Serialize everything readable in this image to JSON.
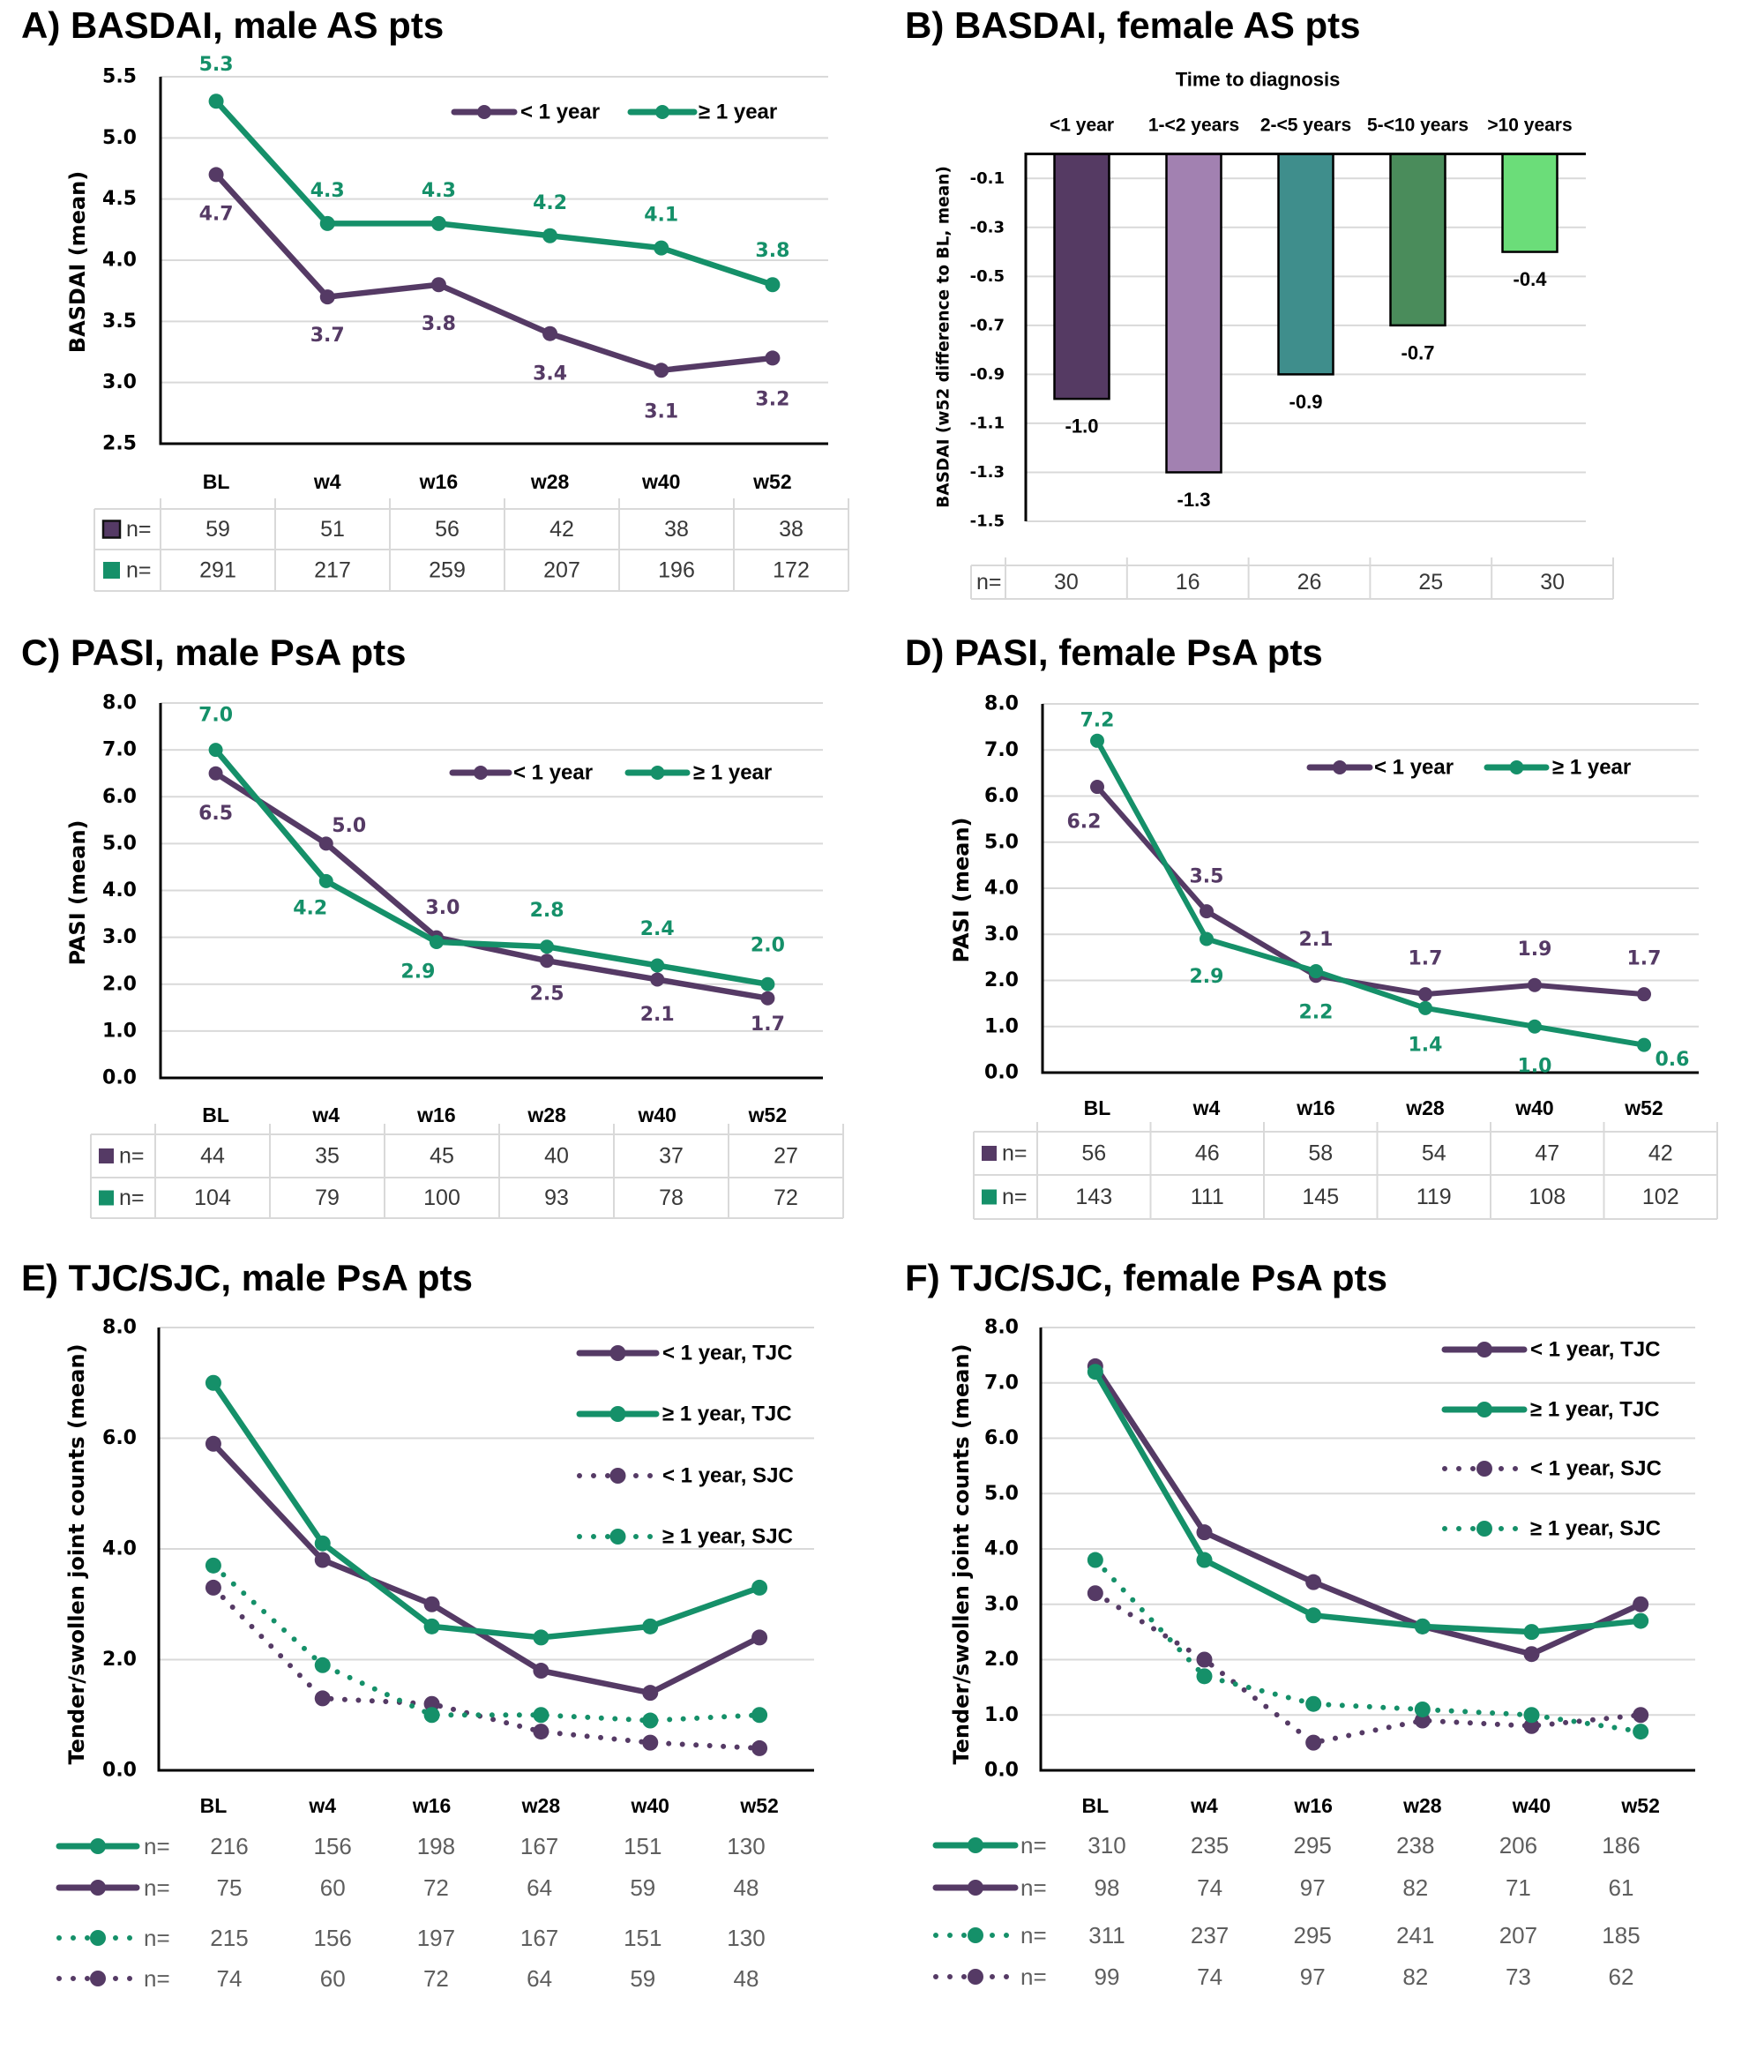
{
  "colors": {
    "less_than_1_year": "#553a65",
    "at_least_1_year": "#159069",
    "gridline": "#d9d9d9",
    "axis": "#000000",
    "table_border": "#d9d9d9"
  },
  "chart_data": [
    {
      "panel": "A",
      "title": "A) BASDAI, male AS pts",
      "type": "line",
      "xlabel": "",
      "ylabel": "BASDAI (mean)",
      "categories": [
        "BL",
        "w4",
        "w16",
        "w28",
        "w40",
        "w52"
      ],
      "ylim": [
        2.5,
        5.5
      ],
      "yticks": [
        2.5,
        3.0,
        3.5,
        4.0,
        4.5,
        5.0,
        5.5
      ],
      "ytick_labels": [
        "2.5",
        "3.0",
        "3.5",
        "4.0",
        "4.5",
        "5.0",
        "5.5"
      ],
      "grid": true,
      "legend": {
        "position": "top-right",
        "orientation": "horizontal"
      },
      "series": [
        {
          "name": "< 1 year",
          "color": "#553a65",
          "line_style": "solid",
          "values": [
            4.7,
            3.7,
            3.8,
            3.4,
            3.1,
            3.2
          ],
          "data_labels": [
            "4.7",
            "3.7",
            "3.8",
            "3.4",
            "3.1",
            "3.2"
          ]
        },
        {
          "name": "≥ 1 year",
          "color": "#159069",
          "line_style": "solid",
          "values": [
            5.3,
            4.3,
            4.3,
            4.2,
            4.1,
            3.8
          ],
          "data_labels": [
            "5.3",
            "4.3",
            "4.3",
            "4.2",
            "4.1",
            "3.8"
          ]
        }
      ],
      "n_table": {
        "rows": [
          {
            "series": 0,
            "label": "n=",
            "values": [
              59,
              51,
              56,
              42,
              38,
              38
            ]
          },
          {
            "series": 1,
            "label": "n=",
            "values": [
              291,
              217,
              259,
              207,
              196,
              172
            ]
          }
        ]
      }
    },
    {
      "panel": "B",
      "title": "B) BASDAI, female AS pts",
      "type": "bar",
      "xlabel": "Time to diagnosis",
      "ylabel": "BASDAI (w52 difference to BL, mean)",
      "categories": [
        "<1 year",
        "1-<2 years",
        "2-<5 years",
        "5-<10 years",
        ">10 years"
      ],
      "values": [
        -1.0,
        -1.3,
        -0.9,
        -0.7,
        -0.4
      ],
      "data_labels": [
        "-1.0",
        "-1.3",
        "-0.9",
        "-0.7",
        "-0.4"
      ],
      "bar_colors": [
        "#553a63",
        "#a281b1",
        "#3f8e8c",
        "#4a8c5b",
        "#6bdd79"
      ],
      "ylim": [
        -1.5,
        0.0
      ],
      "yticks": [
        -0.1,
        -0.3,
        -0.5,
        -0.7,
        -0.9,
        -1.1,
        -1.3,
        -1.5
      ],
      "ytick_labels": [
        "-0.1",
        "-0.3",
        "-0.5",
        "-0.7",
        "-0.9",
        "-1.1",
        "-1.3",
        "-1.5"
      ],
      "grid": true,
      "n_table": {
        "label": "n=",
        "values": [
          30,
          16,
          26,
          25,
          30
        ]
      }
    },
    {
      "panel": "C",
      "title": "C) PASI, male PsA pts",
      "type": "line",
      "xlabel": "",
      "ylabel": "PASI (mean)",
      "categories": [
        "BL",
        "w4",
        "w16",
        "w28",
        "w40",
        "w52"
      ],
      "ylim": [
        0.0,
        8.0
      ],
      "yticks": [
        0,
        1,
        2,
        3,
        4,
        5,
        6,
        7,
        8
      ],
      "ytick_labels": [
        "0.0",
        "1.0",
        "2.0",
        "3.0",
        "4.0",
        "5.0",
        "6.0",
        "7.0",
        "8.0"
      ],
      "grid": true,
      "legend": {
        "position": "top-right",
        "orientation": "horizontal"
      },
      "series": [
        {
          "name": "< 1 year",
          "color": "#553a65",
          "line_style": "solid",
          "values": [
            6.5,
            5.0,
            3.0,
            2.5,
            2.1,
            1.7
          ],
          "data_labels": [
            "6.5",
            "5.0",
            "3.0",
            "2.5",
            "2.1",
            "1.7"
          ]
        },
        {
          "name": "≥ 1 year",
          "color": "#159069",
          "line_style": "solid",
          "values": [
            7.0,
            4.2,
            2.9,
            2.8,
            2.4,
            2.0
          ],
          "data_labels": [
            "7.0",
            "4.2",
            "2.9",
            "2.8",
            "2.4",
            "2.0"
          ]
        }
      ],
      "n_table": {
        "rows": [
          {
            "series": 0,
            "label": "n=",
            "values": [
              44,
              35,
              45,
              40,
              37,
              27
            ]
          },
          {
            "series": 1,
            "label": "n=",
            "values": [
              104,
              79,
              100,
              93,
              78,
              72
            ]
          }
        ]
      }
    },
    {
      "panel": "D",
      "title": "D) PASI, female PsA pts",
      "type": "line",
      "xlabel": "",
      "ylabel": "PASI (mean)",
      "categories": [
        "BL",
        "w4",
        "w16",
        "w28",
        "w40",
        "w52"
      ],
      "ylim": [
        0.0,
        8.0
      ],
      "yticks": [
        0,
        1,
        2,
        3,
        4,
        5,
        6,
        7,
        8
      ],
      "ytick_labels": [
        "0.0",
        "1.0",
        "2.0",
        "3.0",
        "4.0",
        "5.0",
        "6.0",
        "7.0",
        "8.0"
      ],
      "grid": true,
      "legend": {
        "position": "top-right",
        "orientation": "horizontal"
      },
      "series": [
        {
          "name": "< 1 year",
          "color": "#553a65",
          "line_style": "solid",
          "values": [
            6.2,
            3.5,
            2.1,
            1.7,
            1.9,
            1.7
          ],
          "data_labels": [
            "6.2",
            "3.5",
            "2.1",
            "1.7",
            "1.9",
            "1.7"
          ]
        },
        {
          "name": "≥ 1 year",
          "color": "#159069",
          "line_style": "solid",
          "values": [
            7.2,
            2.9,
            2.2,
            1.4,
            1.0,
            0.6
          ],
          "data_labels": [
            "7.2",
            "2.9",
            "2.2",
            "1.4",
            "1.0",
            "0.6"
          ]
        }
      ],
      "n_table": {
        "rows": [
          {
            "series": 0,
            "label": "n=",
            "values": [
              56,
              46,
              58,
              54,
              47,
              42
            ]
          },
          {
            "series": 1,
            "label": "n=",
            "values": [
              143,
              111,
              145,
              119,
              108,
              102
            ]
          }
        ]
      }
    },
    {
      "panel": "E",
      "title": "E) TJC/SJC, male PsA pts",
      "type": "line",
      "xlabel": "",
      "ylabel": "Tender/swollen joint counts (mean)",
      "categories": [
        "BL",
        "w4",
        "w16",
        "w28",
        "w40",
        "w52"
      ],
      "ylim": [
        0.0,
        8.0
      ],
      "yticks": [
        0,
        2,
        4,
        6,
        8
      ],
      "ytick_labels": [
        "0.0",
        "2.0",
        "4.0",
        "6.0",
        "8.0"
      ],
      "grid": true,
      "legend": {
        "position": "top-right",
        "orientation": "vertical"
      },
      "series": [
        {
          "name": "< 1 year, TJC",
          "color": "#553a65",
          "line_style": "solid",
          "values": [
            5.9,
            3.8,
            3.0,
            1.8,
            1.4,
            2.4
          ]
        },
        {
          "name": "≥ 1 year, TJC",
          "color": "#159069",
          "line_style": "solid",
          "values": [
            7.0,
            4.1,
            2.6,
            2.4,
            2.6,
            3.3
          ]
        },
        {
          "name": "< 1 year, SJC",
          "color": "#553a65",
          "line_style": "dotted",
          "values": [
            3.3,
            1.3,
            1.2,
            0.7,
            0.5,
            0.4
          ]
        },
        {
          "name": "≥ 1 year, SJC",
          "color": "#159069",
          "line_style": "dotted",
          "values": [
            3.7,
            1.9,
            1.0,
            1.0,
            0.9,
            1.0
          ]
        }
      ],
      "n_table": {
        "rows": [
          {
            "series": 1,
            "label": "n=",
            "values": [
              216,
              156,
              198,
              167,
              151,
              130
            ]
          },
          {
            "series": 0,
            "label": "n=",
            "values": [
              75,
              60,
              72,
              64,
              59,
              48
            ]
          },
          {
            "series": 3,
            "label": "n=",
            "values": [
              215,
              156,
              197,
              167,
              151,
              130
            ]
          },
          {
            "series": 2,
            "label": "n=",
            "values": [
              74,
              60,
              72,
              64,
              59,
              48
            ]
          }
        ]
      }
    },
    {
      "panel": "F",
      "title": "F) TJC/SJC, female PsA pts",
      "type": "line",
      "xlabel": "",
      "ylabel": "Tender/swollen joint counts (mean)",
      "categories": [
        "BL",
        "w4",
        "w16",
        "w28",
        "w40",
        "w52"
      ],
      "ylim": [
        0.0,
        8.0
      ],
      "yticks": [
        0,
        1,
        2,
        3,
        4,
        5,
        6,
        7,
        8
      ],
      "ytick_labels": [
        "0.0",
        "1.0",
        "2.0",
        "3.0",
        "4.0",
        "5.0",
        "6.0",
        "7.0",
        "8.0"
      ],
      "grid": true,
      "legend": {
        "position": "top-right",
        "orientation": "vertical"
      },
      "series": [
        {
          "name": "< 1 year, TJC",
          "color": "#553a65",
          "line_style": "solid",
          "values": [
            7.3,
            4.3,
            3.4,
            2.6,
            2.1,
            3.0
          ]
        },
        {
          "name": "≥ 1 year, TJC",
          "color": "#159069",
          "line_style": "solid",
          "values": [
            7.2,
            3.8,
            2.8,
            2.6,
            2.5,
            2.7
          ]
        },
        {
          "name": "< 1 year, SJC",
          "color": "#553a65",
          "line_style": "dotted",
          "values": [
            3.2,
            2.0,
            0.5,
            0.9,
            0.8,
            1.0
          ]
        },
        {
          "name": "≥ 1 year, SJC",
          "color": "#159069",
          "line_style": "dotted",
          "values": [
            3.8,
            1.7,
            1.2,
            1.1,
            1.0,
            0.7
          ]
        }
      ],
      "n_table": {
        "rows": [
          {
            "series": 1,
            "label": "n=",
            "values": [
              310,
              235,
              295,
              238,
              206,
              186
            ]
          },
          {
            "series": 0,
            "label": "n=",
            "values": [
              98,
              74,
              97,
              82,
              71,
              61
            ]
          },
          {
            "series": 3,
            "label": "n=",
            "values": [
              311,
              237,
              295,
              241,
              207,
              185
            ]
          },
          {
            "series": 2,
            "label": "n=",
            "values": [
              99,
              74,
              97,
              82,
              73,
              62
            ]
          }
        ]
      }
    }
  ]
}
